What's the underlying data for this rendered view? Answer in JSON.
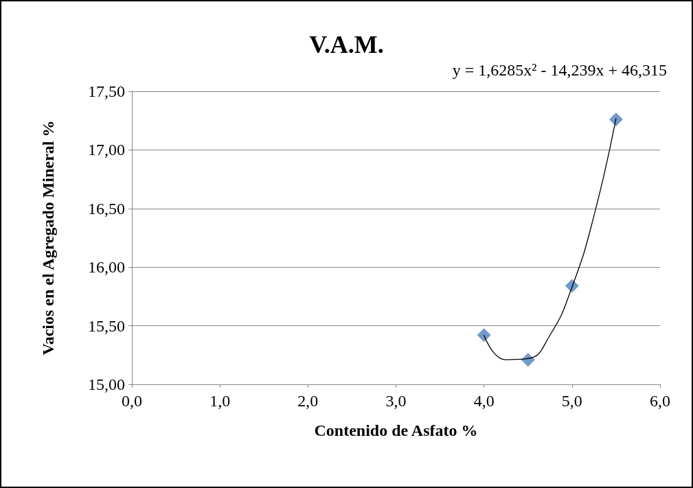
{
  "chart_data": {
    "type": "scatter",
    "title": "V.A.M.",
    "xlabel": "Contenido de Asfato %",
    "ylabel": "Vacios en el Agregado Mineral %",
    "annotations": [
      "y = 1,6285x² - 14,239x + 46,315"
    ],
    "x": [
      4.0,
      4.5,
      5.0,
      5.5
    ],
    "series": [
      {
        "color": "#4f81bd",
        "values": [
          15.42,
          15.21,
          15.84,
          17.26
        ]
      },
      {
        "type": "line",
        "marker": "none",
        "color": "#000000",
        "x": [
          4.0,
          4.25,
          4.5,
          4.75,
          5.0,
          5.25,
          5.5
        ],
        "values": [
          15.42,
          15.21,
          15.22,
          15.42,
          15.83,
          16.44,
          17.27
        ]
      }
    ],
    "xlim": [
      0,
      6
    ],
    "ylim": [
      15,
      17.5
    ],
    "xticks": [
      {
        "value": 0,
        "label": "0,0"
      },
      {
        "value": 1,
        "label": "1,0"
      },
      {
        "value": 2,
        "label": "2,0"
      },
      {
        "value": 3,
        "label": "3,0"
      },
      {
        "value": 4,
        "label": "4,0"
      },
      {
        "value": 5,
        "label": "5,0"
      },
      {
        "value": 6,
        "label": "6,0"
      }
    ],
    "yticks": [
      {
        "value": 15,
        "label": "15,00"
      },
      {
        "value": 15.5,
        "label": "15,50"
      },
      {
        "value": 16,
        "label": "16,00"
      },
      {
        "value": 16.5,
        "label": "16,50"
      },
      {
        "value": 17,
        "label": "17,00"
      },
      {
        "value": 17.5,
        "label": "17,50"
      }
    ],
    "grid": "y",
    "marker": "diamond",
    "line_style": "solid"
  }
}
